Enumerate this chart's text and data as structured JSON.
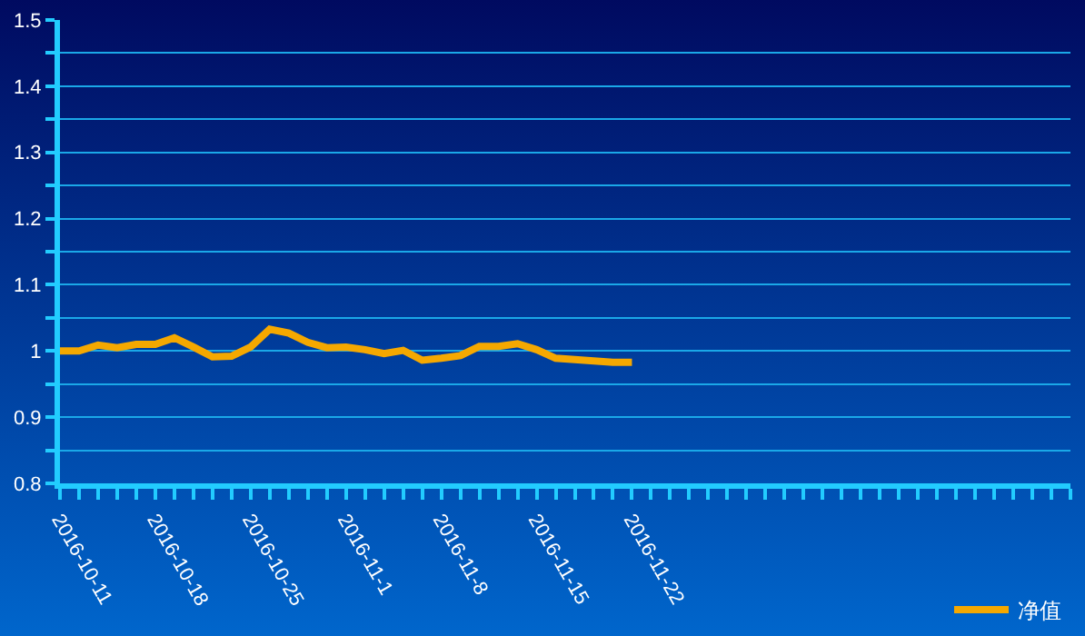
{
  "chart_data": {
    "type": "line",
    "categories": [
      "2016-10-11",
      null,
      null,
      null,
      null,
      "2016-10-18",
      null,
      null,
      null,
      null,
      "2016-10-25",
      null,
      null,
      null,
      null,
      "2016-11-1",
      null,
      null,
      null,
      null,
      "2016-11-8",
      null,
      null,
      null,
      null,
      "2016-11-15",
      null,
      null,
      null,
      null,
      "2016-11-22",
      null,
      null,
      null,
      null,
      null,
      null,
      null,
      null,
      null,
      null,
      null,
      null,
      null,
      null,
      null,
      null,
      null,
      null,
      null,
      null,
      null,
      null,
      null
    ],
    "series": [
      {
        "name": "净值",
        "color": "#f5a800",
        "values": [
          1.0,
          1.0,
          1.009,
          1.005,
          1.01,
          1.01,
          1.02,
          1.006,
          0.991,
          0.992,
          1.006,
          1.033,
          1.027,
          1.013,
          1.005,
          1.006,
          1.002,
          0.996,
          1.001,
          0.986,
          0.989,
          0.993,
          1.007,
          1.007,
          1.011,
          1.002,
          0.989,
          0.987,
          0.985,
          0.983,
          0.983,
          null,
          null,
          null,
          null,
          null,
          null,
          null,
          null,
          null,
          null,
          null,
          null,
          null,
          null,
          null,
          null,
          null,
          null,
          null,
          null,
          null,
          null,
          null
        ]
      }
    ],
    "ylim": [
      0.8,
      1.5
    ],
    "yticks": [
      0.8,
      {
        "value": 0.85,
        "label": null
      },
      0.9,
      {
        "value": 0.95,
        "label": null
      },
      1,
      {
        "value": 1.05,
        "label": null
      },
      1.1,
      {
        "value": 1.15,
        "label": null
      },
      1.2,
      {
        "value": 1.25,
        "label": null
      },
      1.3,
      {
        "value": 1.35,
        "label": null
      },
      1.4,
      {
        "value": 1.45,
        "label": null
      },
      1.5
    ],
    "grid": "y",
    "legend": "bottom right",
    "marker": "none",
    "line_style": "solid"
  }
}
